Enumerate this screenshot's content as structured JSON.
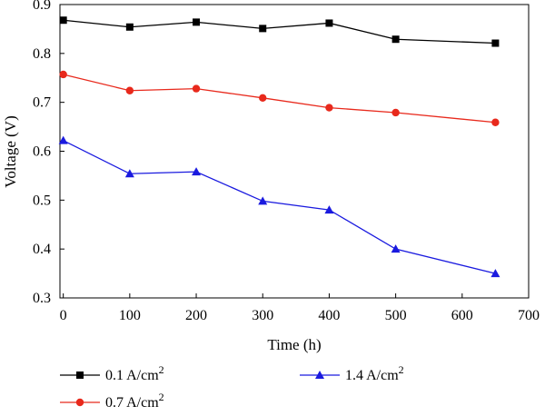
{
  "chart_data": {
    "type": "line",
    "title": "",
    "xlabel": "Time (h)",
    "ylabel": "Voltage (V)",
    "xlim": [
      -5,
      700
    ],
    "ylim": [
      0.3,
      0.9
    ],
    "xticks": [
      0,
      100,
      200,
      300,
      400,
      500,
      600,
      700
    ],
    "yticks": [
      0.3,
      0.4,
      0.5,
      0.6,
      0.7,
      0.8,
      0.9
    ],
    "grid": false,
    "legend_position": "bottom",
    "x": [
      0,
      100,
      200,
      300,
      400,
      500,
      650
    ],
    "series": [
      {
        "name": "0.1 A/cm",
        "superscript": "2",
        "marker": "square",
        "color": "#000000",
        "values": [
          0.868,
          0.854,
          0.864,
          0.851,
          0.862,
          0.829,
          0.821
        ]
      },
      {
        "name": "0.7 A/cm",
        "superscript": "2",
        "marker": "circle",
        "color": "#e8291c",
        "values": [
          0.757,
          0.724,
          0.728,
          0.709,
          0.689,
          0.679,
          0.659
        ]
      },
      {
        "name": "1.4 A/cm",
        "superscript": "2",
        "marker": "triangle",
        "color": "#1a1adf",
        "values": [
          0.622,
          0.554,
          0.558,
          0.498,
          0.48,
          0.4,
          0.35
        ]
      }
    ]
  }
}
